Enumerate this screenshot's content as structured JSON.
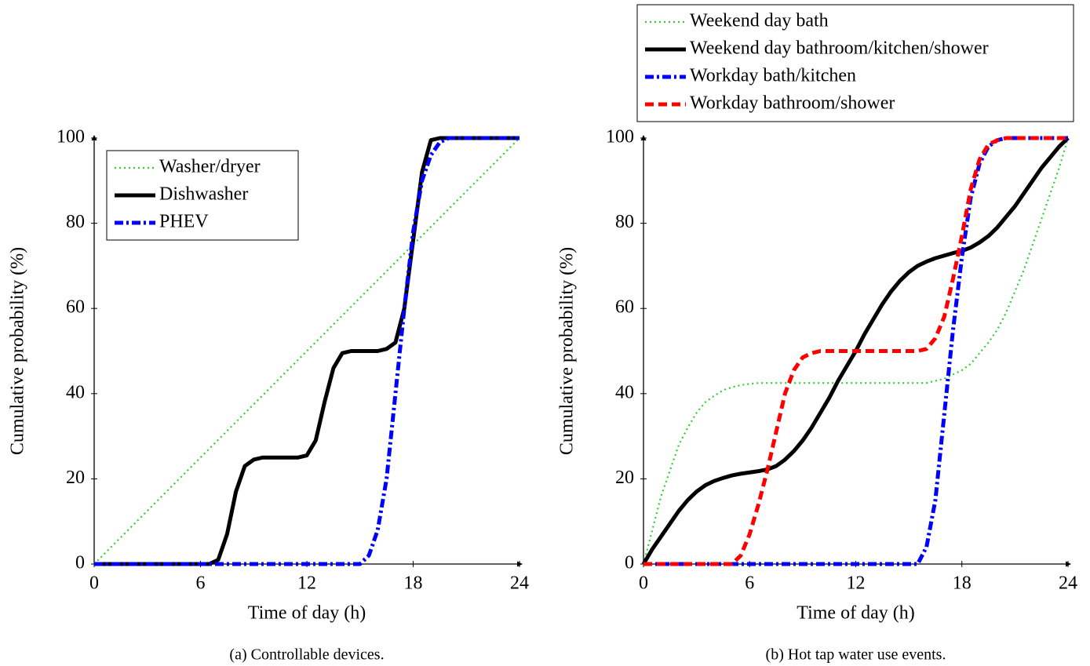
{
  "chart_data": [
    {
      "type": "line",
      "caption": "(a) Controllable devices.",
      "x_label": "Time of day (h)",
      "y_label": "Cumulative probability (%)",
      "xlim": [
        0,
        24
      ],
      "ylim": [
        0,
        100
      ],
      "xticks": [
        0,
        6,
        12,
        18,
        24
      ],
      "yticks": [
        0,
        20,
        40,
        60,
        80,
        100
      ],
      "grid": false,
      "legend": "upper left",
      "x": [
        0,
        0.5,
        1,
        1.5,
        2,
        2.5,
        3,
        3.5,
        4,
        4.5,
        5,
        5.5,
        6,
        6.5,
        7,
        7.5,
        8,
        8.5,
        9,
        9.5,
        10,
        10.5,
        11,
        11.5,
        12,
        12.5,
        13,
        13.5,
        14,
        14.5,
        15,
        15.5,
        16,
        16.5,
        17,
        17.5,
        18,
        18.5,
        19,
        19.5,
        20,
        20.5,
        21,
        21.5,
        22,
        22.5,
        23,
        23.5,
        24
      ],
      "series": [
        {
          "name": "Washer/dryer",
          "color": "#33cc33",
          "line_style": "dotted",
          "values": [
            0,
            2.08,
            4.17,
            6.25,
            8.33,
            10.42,
            12.5,
            14.58,
            16.67,
            18.75,
            20.83,
            22.92,
            25,
            27.08,
            29.17,
            31.25,
            33.33,
            35.42,
            37.5,
            39.58,
            41.67,
            43.75,
            45.83,
            47.92,
            50,
            52.08,
            54.17,
            56.25,
            58.33,
            60.42,
            62.5,
            64.58,
            66.67,
            68.75,
            70.83,
            72.92,
            75,
            77.08,
            79.17,
            81.25,
            83.33,
            85.42,
            87.5,
            89.58,
            91.67,
            93.75,
            95.83,
            97.92,
            100
          ]
        },
        {
          "name": "Dishwasher",
          "color": "#000000",
          "line_style": "solid",
          "values": [
            0,
            0,
            0,
            0,
            0,
            0,
            0,
            0,
            0,
            0,
            0,
            0,
            0,
            0,
            1,
            7,
            17,
            23,
            24.5,
            25,
            25,
            25,
            25,
            25,
            25.5,
            29,
            38,
            46,
            49.5,
            50,
            50,
            50,
            50,
            50.5,
            52,
            60,
            76,
            92,
            99.5,
            100,
            100,
            100,
            100,
            100,
            100,
            100,
            100,
            100,
            100
          ]
        },
        {
          "name": "PHEV",
          "color": "#0000ff",
          "line_style": "dashdot",
          "values": [
            0,
            0,
            0,
            0,
            0,
            0,
            0,
            0,
            0,
            0,
            0,
            0,
            0,
            0,
            0,
            0,
            0,
            0,
            0,
            0,
            0,
            0,
            0,
            0,
            0,
            0,
            0,
            0,
            0,
            0,
            0,
            2,
            8,
            20,
            40,
            60,
            78,
            90,
            96,
            99,
            100,
            100,
            100,
            100,
            100,
            100,
            100,
            100,
            100
          ]
        }
      ]
    },
    {
      "type": "line",
      "caption": "(b) Hot tap water use events.",
      "x_label": "Time of day (h)",
      "y_label": "Cumulative probability (%)",
      "xlim": [
        0,
        24
      ],
      "ylim": [
        0,
        100
      ],
      "xticks": [
        0,
        6,
        12,
        18,
        24
      ],
      "yticks": [
        0,
        20,
        40,
        60,
        80,
        100
      ],
      "grid": false,
      "legend": "above",
      "x": [
        0,
        0.5,
        1,
        1.5,
        2,
        2.5,
        3,
        3.5,
        4,
        4.5,
        5,
        5.5,
        6,
        6.5,
        7,
        7.5,
        8,
        8.5,
        9,
        9.5,
        10,
        10.5,
        11,
        11.5,
        12,
        12.5,
        13,
        13.5,
        14,
        14.5,
        15,
        15.5,
        16,
        16.5,
        17,
        17.5,
        18,
        18.5,
        19,
        19.5,
        20,
        20.5,
        21,
        21.5,
        22,
        22.5,
        23,
        23.5,
        24
      ],
      "series": [
        {
          "name": "Weekend day bath",
          "color": "#33cc33",
          "line_style": "dotted",
          "values": [
            0,
            8,
            16,
            22,
            28,
            32,
            35.5,
            38,
            39.5,
            40.8,
            41.5,
            42,
            42.3,
            42.5,
            42.5,
            42.5,
            42.5,
            42.5,
            42.5,
            42.5,
            42.5,
            42.5,
            42.5,
            42.5,
            42.5,
            42.5,
            42.5,
            42.5,
            42.5,
            42.5,
            42.5,
            42.5,
            42.5,
            43,
            43.5,
            44.5,
            45.5,
            47,
            49.5,
            52,
            55,
            59,
            64,
            69,
            75,
            81,
            87,
            93,
            100
          ]
        },
        {
          "name": "Weekend day bathroom/kitchen/shower",
          "color": "#000000",
          "line_style": "solid",
          "values": [
            0,
            3.5,
            6.5,
            9.5,
            12.5,
            15,
            17,
            18.5,
            19.5,
            20.2,
            20.8,
            21.2,
            21.5,
            21.8,
            22.2,
            23,
            24.5,
            26.5,
            29,
            32,
            35.5,
            39,
            43,
            46.5,
            50,
            54,
            57.5,
            61,
            64,
            66.5,
            68.5,
            70,
            71,
            71.8,
            72.4,
            73,
            73.5,
            74.3,
            75.5,
            77,
            79,
            81.5,
            84,
            87,
            90,
            93,
            95.5,
            98,
            100
          ]
        },
        {
          "name": "Workday bath/kitchen",
          "color": "#0000ff",
          "line_style": "dashdot",
          "values": [
            0,
            0,
            0,
            0,
            0,
            0,
            0,
            0,
            0,
            0,
            0,
            0,
            0,
            0,
            0,
            0,
            0,
            0,
            0,
            0,
            0,
            0,
            0,
            0,
            0,
            0,
            0,
            0,
            0,
            0,
            0,
            0,
            4,
            15,
            35,
            55,
            72,
            86,
            94,
            98,
            99.5,
            100,
            100,
            100,
            100,
            100,
            100,
            100,
            100
          ]
        },
        {
          "name": "Workday bathroom/shower",
          "color": "#ff0000",
          "line_style": "dashed",
          "values": [
            0,
            0,
            0,
            0,
            0,
            0,
            0,
            0,
            0,
            0,
            0,
            2,
            7,
            14,
            22,
            31,
            40,
            45.5,
            48.5,
            49.5,
            50,
            50,
            50,
            50,
            50,
            50,
            50,
            50,
            50,
            50,
            50,
            50,
            50.5,
            53,
            58,
            67,
            77,
            88,
            95,
            98.5,
            99.5,
            100,
            100,
            100,
            100,
            100,
            100,
            100,
            100
          ]
        }
      ]
    }
  ]
}
